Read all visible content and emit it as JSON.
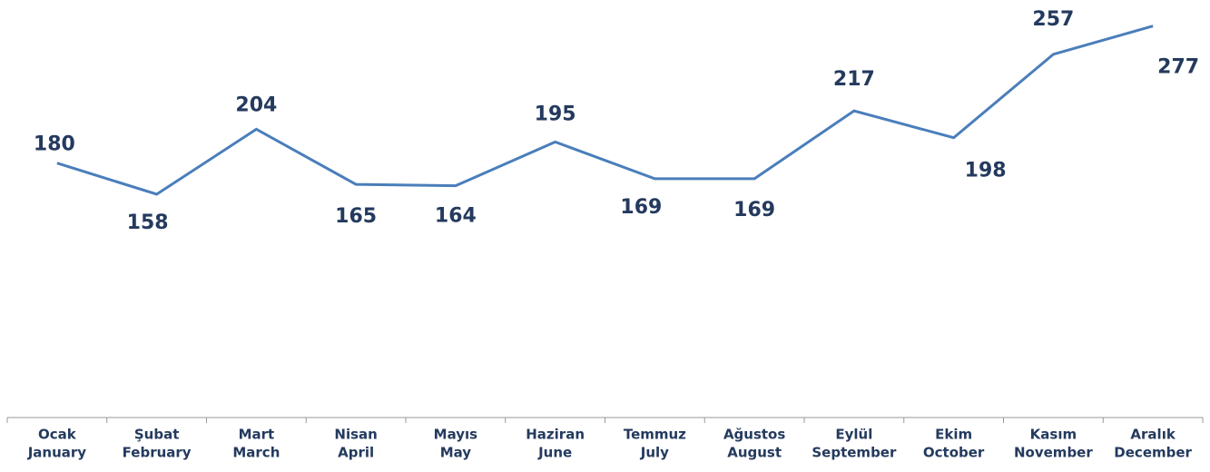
{
  "chart_data": {
    "type": "line",
    "categories": [
      [
        "Ocak",
        "January"
      ],
      [
        "Şubat",
        "February"
      ],
      [
        "Mart",
        "March"
      ],
      [
        "Nisan",
        "April"
      ],
      [
        "Mayıs",
        "May"
      ],
      [
        "Haziran",
        "June"
      ],
      [
        "Temmuz",
        "July"
      ],
      [
        "Ağustos",
        "August"
      ],
      [
        "Eylül",
        "September"
      ],
      [
        "Ekim",
        "October"
      ],
      [
        "Kasım",
        "November"
      ],
      [
        "Aralık",
        "December"
      ]
    ],
    "values": [
      180,
      158,
      204,
      165,
      164,
      195,
      169,
      169,
      217,
      198,
      257,
      277
    ],
    "color": "#4a7ebb"
  }
}
